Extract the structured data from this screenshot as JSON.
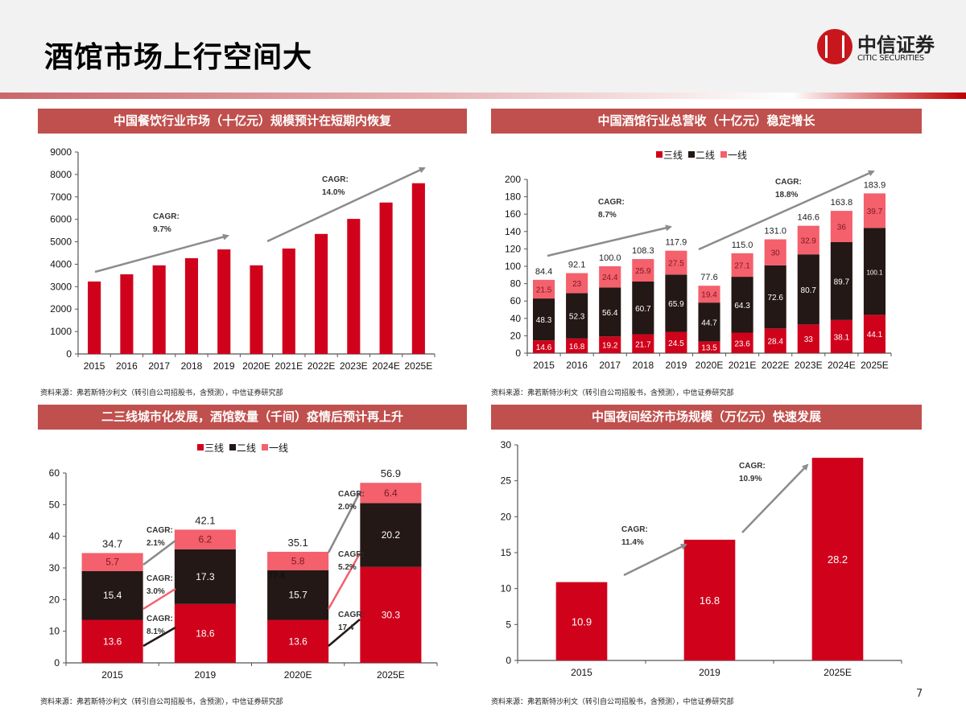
{
  "title": "酒馆市场上行空间大",
  "logo": {
    "cn": "中信证券",
    "en": "CITIC SECURITIES"
  },
  "page_number": "7",
  "panels": [
    {
      "title": "中国餐饮行业市场（十亿元）规模预计在短期内恢复",
      "source": "资料来源：弗若斯特沙利文（转引自公司招股书，含预测），中信证券研究部"
    },
    {
      "title": "中国酒馆行业总营收（十亿元）稳定增长",
      "source": "资料来源：弗若斯特沙利文（转引自公司招股书，含预测），中信证券研究部"
    },
    {
      "title": "二三线城市化发展，酒馆数量（千间）疫情后预计再上升",
      "source": "资料来源：弗若斯特沙利文（转引自公司招股书，含预测），中信证券研究部"
    },
    {
      "title": "中国夜间经济市场规模（万亿元）快速发展",
      "source": "资料来源：弗若斯特沙利文（转引自公司招股书，含预测），中信证券研究部"
    }
  ],
  "colors": {
    "tier3": "#d0021b",
    "tier2": "#231815",
    "tier1": "#f4606c",
    "bar": "#d0021b",
    "panel_header": "#c0504d",
    "arrow": "#8c8c8c"
  },
  "chart_data": [
    {
      "type": "bar",
      "categories": [
        "2015",
        "2016",
        "2017",
        "2018",
        "2019",
        "2020E",
        "2021E",
        "2022E",
        "2023E",
        "2024E",
        "2025E"
      ],
      "values": [
        3230,
        3550,
        3950,
        4270,
        4660,
        3950,
        4700,
        5350,
        6020,
        6750,
        7610
      ],
      "ylim": [
        0,
        9000
      ],
      "yticks": [
        "0",
        "1000",
        "2000",
        "3000",
        "4000",
        "5000",
        "6000",
        "7000",
        "8000",
        "9000"
      ],
      "annotations": [
        {
          "label": "CAGR:",
          "value": "9.7%"
        },
        {
          "label": "CAGR:",
          "value": "14.0%"
        }
      ]
    },
    {
      "type": "bar",
      "stacked": true,
      "categories": [
        "2015",
        "2016",
        "2017",
        "2018",
        "2019",
        "2020E",
        "2021E",
        "2022E",
        "2023E",
        "2024E",
        "2025E"
      ],
      "series": [
        {
          "name": "三线",
          "values": [
            14.6,
            16.8,
            19.2,
            21.7,
            24.5,
            13.5,
            23.6,
            28.4,
            33,
            38.1,
            44.1
          ],
          "labels": [
            "14.6",
            "16.8",
            "19.2",
            "21.7",
            "24.5",
            "13.5",
            "23.6",
            "28.4",
            "33",
            "38.1",
            "44.1"
          ]
        },
        {
          "name": "二线",
          "values": [
            48.3,
            52.3,
            56.4,
            60.7,
            65.9,
            44.7,
            64.3,
            72.6,
            80.7,
            89.7,
            100.1
          ],
          "labels": [
            "48.3",
            "52.3",
            "56.4",
            "60.7",
            "65.9",
            "44.7",
            "64.3",
            "72.6",
            "80.7",
            "89.7",
            "100.1"
          ]
        },
        {
          "name": "一线",
          "values": [
            21.5,
            23,
            24.4,
            25.9,
            27.5,
            19.4,
            27.1,
            30,
            32.9,
            36,
            39.7
          ],
          "labels": [
            "21.5",
            "23",
            "24.4",
            "25.9",
            "27.5",
            "19.4",
            "27.1",
            "30",
            "32.9",
            "36",
            "39.7"
          ]
        }
      ],
      "totals": [
        "84.4",
        "92.1",
        "100.0",
        "108.3",
        "117.9",
        "77.6",
        "115.0",
        "131.0",
        "146.6",
        "163.8",
        "183.9"
      ],
      "ylim": [
        0,
        200
      ],
      "yticks": [
        "0",
        "20",
        "40",
        "60",
        "80",
        "100",
        "120",
        "140",
        "160",
        "180",
        "200"
      ],
      "legend": "top",
      "annotations": [
        {
          "label": "CAGR:",
          "value": "8.7%"
        },
        {
          "label": "CAGR:",
          "value": "18.8%"
        }
      ]
    },
    {
      "type": "bar",
      "stacked": true,
      "categories": [
        "2015",
        "2019",
        "2020E",
        "2025E"
      ],
      "series": [
        {
          "name": "三线",
          "values": [
            13.6,
            18.6,
            13.6,
            30.3
          ],
          "labels": [
            "13.6",
            "18.6",
            "13.6",
            "30.3"
          ]
        },
        {
          "name": "二线",
          "values": [
            15.4,
            17.3,
            15.7,
            20.2
          ],
          "labels": [
            "15.4",
            "17.3",
            "15.7",
            "20.2"
          ]
        },
        {
          "name": "一线",
          "values": [
            5.7,
            6.2,
            5.8,
            6.4
          ],
          "labels": [
            "5.7",
            "6.2",
            "5.8",
            "6.4"
          ]
        }
      ],
      "totals": [
        "34.7",
        "42.1",
        "35.1",
        "56.9"
      ],
      "stray_label": "77.6",
      "ylim": [
        0,
        60
      ],
      "yticks": [
        "0",
        "10",
        "20",
        "30",
        "40",
        "50",
        "60"
      ],
      "legend": "top",
      "annotations": [
        {
          "label": "CAGR:",
          "value": "2.1%"
        },
        {
          "label": "CAGR:",
          "value": "3.0%"
        },
        {
          "label": "CAGR:",
          "value": "8.1%"
        },
        {
          "label": "CAGR:",
          "value": "2.0%"
        },
        {
          "label": "CAGR:",
          "value": "5.2%"
        },
        {
          "label": "CAGR:",
          "value": "17.4"
        }
      ]
    },
    {
      "type": "bar",
      "categories": [
        "2015",
        "2019",
        "2025E"
      ],
      "values": [
        10.9,
        16.8,
        28.2
      ],
      "labels": [
        "10.9",
        "16.8",
        "28.2"
      ],
      "ylim": [
        0,
        30
      ],
      "yticks": [
        "0",
        "5",
        "10",
        "15",
        "20",
        "25",
        "30"
      ],
      "annotations": [
        {
          "label": "CAGR:",
          "value": "11.4%"
        },
        {
          "label": "CAGR:",
          "value": "10.9%"
        }
      ]
    }
  ]
}
